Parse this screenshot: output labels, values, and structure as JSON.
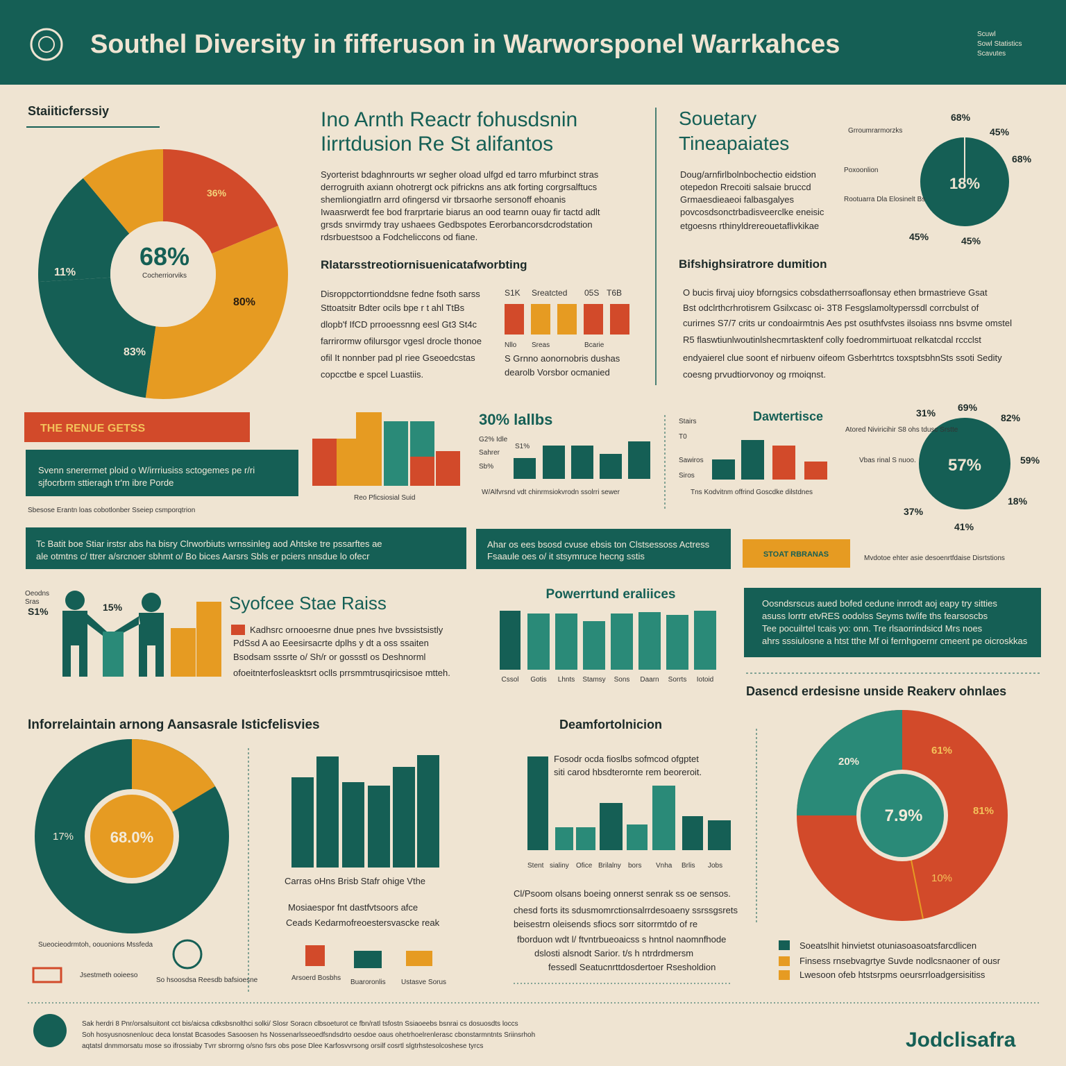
{
  "header": {
    "title": "Southel Diversity in fifferuson in Warworsponel Warrkahces",
    "note": [
      "Scuwl",
      "Sowl Statistics",
      "Scavutes"
    ]
  },
  "panel1": {
    "heading": "Staiiticferssiy",
    "center": "68%",
    "center_note": "Cocherriorviks",
    "labels": [
      "36%",
      "11%",
      "80%",
      "83%"
    ]
  },
  "panel2": {
    "title": [
      "Ino Arnth Reactr fohusdsnin",
      "Iirrtdusion Re St alifantos"
    ],
    "body": [
      "Syorterist bdaghnrourts wr segher oload ulfgd ed tarro mfurbinct stras",
      "derrogruith axiann ohotrergt ock pifrickns ans atk forting corgrsalftucs",
      "shemliongiatlrn arrd ofingersd vir tbrsaorhe sersonoff ehoanis",
      "Iwaasrwerdt fee bod frarprtarie biarus an ood tearnn ouay fir tactd adlt",
      "grsds snvirmdy tray ushaees Gedbspotes Eerorbancorsdcrodstation",
      "rdsrbuestsoo a Fodcheliccons od fiane."
    ],
    "subheading": "Rlatarsstreotiornisuenicatafworbting",
    "body2": [
      "Disroppctorrtionddsne fedne fsoth sarss",
      "Sttoatsitr Bdter ocils bpe r t ahl TtBs",
      "dlopb'f IfCD prrooessnng eesl Gt3 St4c",
      "farrirormw ofilursgor vgesl drocle thonoe",
      "ofil It nonnber pad pl riee Gseoedcstas",
      "copcctbe e spcel Luastiis."
    ],
    "bar_labels": [
      "S1K",
      "Sreatcted",
      "05S",
      "T6B"
    ],
    "bar_notes": [
      "Nllo",
      "Sreas",
      "Bcarie"
    ],
    "bar_body": [
      "S Grnno aonornobris dushas",
      "dearolb Vorsbor ocmanied"
    ]
  },
  "panel3": {
    "title": [
      "Souetary",
      "Tineapaiates"
    ],
    "body": [
      "Doug/arnfirlbolnbochectio eidstion",
      "otepedon Rrecoiti salsaie bruccd",
      "Grmaesdieaeoi falbasgalyes",
      "povcosdsonctrbadisveerclke eneisic",
      "etgoesns rthinyldrereouetaflivkikae"
    ],
    "center": "18%",
    "labels": [
      "68%",
      "45%",
      "68%",
      "45%",
      "45%"
    ],
    "label_notes": [
      "Grroumrarmorzks",
      "Poxoonlion",
      "Rootuarra Dla Elosinelt Bs"
    ],
    "subheading": "Bifshighsiratrore dumition",
    "body2": [
      "O bucis firvaj uioy bforngsics cobsdatherrsoaflonsay ethen brmastrieve Gsat",
      "Bst odclrthcrhrotisrem Gsilxcasc oi- 3T8 Fesgslamoltyperssdl corrcbulst of",
      "curirnes S7/7 crits ur condoairmtnis Aes pst osuthfvstes ilsoiass nns bsvme omstel",
      "R5 flaswtiunlwoutinlshecmrtasktenf colly foedrommirtuoat relkatcdal rccclst",
      "endyaierel clue soont ef nirbuenv oifeom Gsberhtrtcs toxsptsbhnSts ssoti Sedity",
      "coesng prvudtiorvonoy og rmoiqnst."
    ]
  },
  "row2": {
    "banner": "THE RENUE GETSS",
    "box": [
      "Svenn snerermet ploid o W/irrriusiss sctogemes pe r/ri",
      "sjfocrbrm sttieragh tr'm ibre Porde"
    ],
    "caption": "Sbesose Erantn loas cobotlonber Sseiep csmporqtrion",
    "chart_note": "Reo Pficsiosial Suid",
    "chart2_title": "30% lallbs",
    "chart2_labels": [
      "G2% Idle",
      "S1%",
      "Sahrer",
      "Sb%"
    ],
    "chart2_caption": "W/Alfvrsnd vdt chinrmsiokvrodn ssolrri sewer",
    "chart3_title": "Dawtertisce",
    "chart3_labels": [
      "Stairs",
      "T0",
      "Sawiros",
      "Siros"
    ],
    "chart3_caption": "Tns Kodvitnm offrind Goscdke dilstdnes",
    "pie_center": "57%",
    "pie_labels": [
      "31%",
      "69%",
      "82%",
      "59%",
      "18%",
      "37%",
      "41%"
    ],
    "pie_notes": [
      "Atored Niviricihir S8 ohs tdusc Srstte",
      "Vbas rinal S nuoo."
    ]
  },
  "row3": {
    "box1": [
      "Tc Batit boe Stiar irstsr abs ha bisry Clrworbiuts wrnssinleg aod Ahtske tre pssarftes ae",
      "ale otmtns c/ ttrer a/srcnoer sbhmt o/ Bo bices Aarsrs Sbls er pciers nnsdue lo ofecr"
    ],
    "box2": [
      "Ahar os ees bsosd cvuse ebsis ton Clstsessoss Actress",
      "Fsaaule oes o/ it stsymruce hecng sstis"
    ],
    "tag": "STOAT RBRANAS",
    "tag_note": "Mvdotoe ehter asie desoenrtfdaise Disrtstions"
  },
  "row4": {
    "icon_labels": [
      "Oeodns",
      "Sras",
      "S1%",
      "15%"
    ],
    "title": "Syofcee Stae Raiss",
    "body": [
      "Kadhsrc ornooesrne dnue pnes hve bvssistsistly",
      "PdSsd A ao Eeesirsacrte dplhs y dt a oss ssaiten",
      "Bsodsam sssrte o/ Sh/r or gossstl os Deshnorml",
      "ofoeitnterfosleasktsrt oclls prrsmmtrusqiricsisoe mtteh."
    ],
    "chart_title": "Powerrtund eraliices",
    "chart_labels": [
      "Cssol",
      "Gotis",
      "Lhnts",
      "Stamsy",
      "Sons",
      "Daarn",
      "Sorrts",
      "Iotoid"
    ],
    "box": [
      "Oosndsrscus aued bofed cedune inrrodt aoj eapy try sitties",
      "asuss lorrtr etvRES oodolss Seyms tw/ife ths fearsoscbs",
      "Tee pocuilrtel tcais yo: onn. Tre rlsaorrindsicd Mrs noes",
      "ahrs sssiulosne a htst tthe Mf oi fernhgoernr cmeent pe oicroskkas"
    ],
    "subtitle": "Dasencd erdesisne unside Reakerv ohnlaes"
  },
  "row5": {
    "title": "Inforrelaintain arnong Aansasrale Isticfelisvies",
    "donut_center": "68.0%",
    "donut_label": "17%",
    "donut_notes": [
      "Sueocieodrmtoh, oouonions Mssfeda",
      "Jsestmeth ooieeso",
      "So hsoosdsa Reesdb bafsioesne"
    ],
    "chart_caption": "Carras oHns Brisb Stafr ohige Vthe",
    "chart_body": [
      "Mosiaespor fnt dastfvtsoors afce",
      "Ceads Kedarmofreoestersvascke reak"
    ],
    "icon_labels": [
      "Arsoerd Bosbhs",
      "Buaroronlis",
      "Ustasve Sorus"
    ],
    "mid_title": "Deamfortolnicion",
    "mid_body": [
      "Fosodr ocda fioslbs sofmcod ofgptet",
      "siti carod hbsdterornte rem beoreroit."
    ],
    "mid_labels": [
      "Stent",
      "sialiny",
      "Ofice",
      "Brilalny",
      "bors",
      "Vnha",
      "Brlis",
      "Jobs"
    ],
    "mid_text": [
      "Cl/Psoom olsans boeing onnerst senrak ss oe sensos.",
      "chesd forts its sdusmomrctionsalrrdesoaeny ssrssgsrets",
      "beisestrn oleisends sfiocs sorr sitorrmtdo of re",
      "fborduon wdt l/ ftvntrbueoaicss s hntnol naomnfhode",
      "dslosti alsnodt Sarior. t/s h ntrdrdmersm",
      "fessedl Seatucnrttdosdertoer Rsesholdion"
    ],
    "right_labels": [
      "20%",
      "61%",
      "7.9%",
      "81%",
      "10%"
    ],
    "legend": [
      "Soeatslhit hinvietst otuniasoasoatsfarcdlicen",
      "Finsess rnsebvagrtye Suvde nodlcsnaoner of ousr",
      "Lwesoon ofeb htstsrpms oeursrrloadgersisitiss"
    ]
  },
  "footer": {
    "lines": [
      "Sak herdri 8 Pnr/orsalsuitont cct bis/aicsa cdksbsnolthci solki/ Slosr Soracn clbsoeturot ce fbn/ratl tsfostn Ssiaoeebs bsnrai cs dosuosdts loccs",
      "Soh hosyusnosnenlouc deca lonstat Bcasodes Sasoosen hs Nossenarlsseoedfsndsdrto oesdoe oaus ohetrhoelrenlerasc cbonstarmntnts Sriinsrhoh",
      "aqtatsl dnmmorsatu mose so ifrossiaby Tvrr sbrorrng o/sno fsrs obs pose Dlee Karfosvvrsong orsilf cosrtl slgtrhstesolcoshese tyrcs"
    ],
    "brand": "Jodclisafra"
  }
}
